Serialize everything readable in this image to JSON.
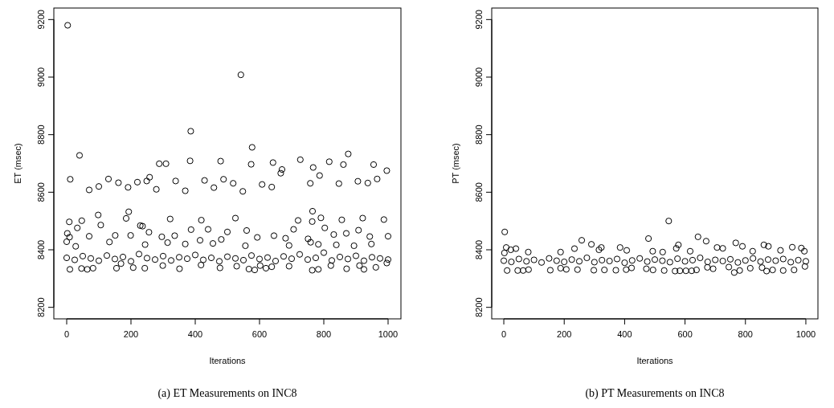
{
  "chart_data": [
    {
      "type": "scatter",
      "xlabel": "Iterations",
      "ylabel": "ET (msec)",
      "annotations": [
        "(a)  ET Measurements on INC8"
      ],
      "marker": "circle",
      "color": "#000000",
      "xlim": [
        -40,
        1040
      ],
      "ylim": [
        8160,
        9240
      ],
      "xticks": [
        0,
        200,
        400,
        600,
        800,
        1000
      ],
      "yticks": [
        8200,
        8400,
        8600,
        8800,
        9000,
        9200
      ],
      "x": [
        3,
        542,
        386,
        577,
        40,
        876,
        384,
        479,
        727,
        642,
        817,
        288,
        309,
        574,
        861,
        955,
        767,
        670,
        666,
        787,
        996,
        11,
        130,
        258,
        488,
        966,
        249,
        339,
        429,
        220,
        161,
        518,
        758,
        847,
        906,
        937,
        608,
        100,
        191,
        458,
        638,
        70,
        279,
        369,
        548,
        765,
        193,
        98,
        185,
        791,
        921,
        525,
        322,
        987,
        47,
        419,
        720,
        856,
        8,
        764,
        106,
        229,
        236,
        803,
        706,
        33,
        387,
        440,
        908,
        2,
        256,
        500,
        560,
        870,
        151,
        199,
        336,
        645,
        831,
        1000,
        70,
        943,
        751,
        681,
        415,
        9,
        296,
        481,
        593,
        0,
        133,
        314,
        783,
        894,
        692,
        556,
        28,
        244,
        455,
        839,
        948,
        759,
        369,
        10,
        46,
        64,
        82,
        155,
        207,
        243,
        351,
        477,
        567,
        585,
        620,
        638,
        692,
        764,
        783,
        871,
        925,
        962,
        169,
        299,
        418,
        529,
        602,
        822,
        911,
        996,
        0,
        25,
        50,
        75,
        100,
        125,
        150,
        175,
        200,
        225,
        250,
        275,
        300,
        325,
        350,
        375,
        400,
        425,
        450,
        475,
        500,
        525,
        550,
        575,
        600,
        625,
        650,
        675,
        700,
        725,
        750,
        775,
        800,
        825,
        850,
        875,
        900,
        925,
        950,
        975,
        1000
      ],
      "values": [
        9180,
        9008,
        8812,
        8756,
        8728,
        8733,
        8709,
        8708,
        8713,
        8703,
        8706,
        8699,
        8699,
        8697,
        8696,
        8696,
        8686,
        8679,
        8666,
        8658,
        8675,
        8645,
        8646,
        8652,
        8645,
        8646,
        8639,
        8639,
        8641,
        8635,
        8633,
        8631,
        8631,
        8630,
        8638,
        8632,
        8627,
        8620,
        8617,
        8616,
        8618,
        8608,
        8610,
        8605,
        8603,
        8534,
        8532,
        8521,
        8509,
        8511,
        8510,
        8510,
        8507,
        8505,
        8501,
        8503,
        8502,
        8504,
        8497,
        8498,
        8486,
        8484,
        8482,
        8476,
        8471,
        8476,
        8470,
        8471,
        8468,
        8457,
        8461,
        8462,
        8467,
        8457,
        8450,
        8450,
        8449,
        8449,
        8453,
        8447,
        8447,
        8446,
        8438,
        8440,
        8433,
        8444,
        8445,
        8436,
        8443,
        8428,
        8427,
        8425,
        8419,
        8414,
        8415,
        8414,
        8412,
        8418,
        8422,
        8417,
        8420,
        8426,
        8420,
        8332,
        8335,
        8332,
        8336,
        8336,
        8338,
        8336,
        8334,
        8337,
        8333,
        8330,
        8336,
        8341,
        8343,
        8329,
        8332,
        8334,
        8332,
        8339,
        8352,
        8345,
        8347,
        8343,
        8345,
        8345,
        8345,
        8354,
        8372,
        8365,
        8378,
        8370,
        8362,
        8380,
        8368,
        8375,
        8360,
        8385,
        8371,
        8366,
        8378,
        8363,
        8374,
        8369,
        8382,
        8365,
        8372,
        8360,
        8376,
        8370,
        8364,
        8380,
        8368,
        8373,
        8361,
        8377,
        8369,
        8384,
        8366,
        8372,
        8390,
        8363,
        8375,
        8368,
        8379,
        8362,
        8374,
        8370,
        8366
      ]
    },
    {
      "type": "scatter",
      "xlabel": "Iterations",
      "ylabel": "PT (msec)",
      "annotations": [
        "(b)  PT Measurements on INC8"
      ],
      "marker": "circle",
      "color": "#000000",
      "xlim": [
        -40,
        1040
      ],
      "ylim": [
        8160,
        9240
      ],
      "xticks": [
        0,
        200,
        400,
        600,
        800,
        1000
      ],
      "yticks": [
        8200,
        8400,
        8600,
        8800,
        9000,
        9200
      ],
      "x": [
        3,
        546,
        479,
        643,
        670,
        258,
        290,
        768,
        578,
        861,
        876,
        955,
        985,
        8,
        323,
        385,
        706,
        725,
        790,
        234,
        571,
        40,
        23,
        2,
        81,
        188,
        315,
        407,
        493,
        526,
        617,
        824,
        916,
        995,
        11,
        46,
        64,
        82,
        154,
        188,
        207,
        244,
        298,
        333,
        371,
        405,
        423,
        472,
        494,
        531,
        567,
        583,
        603,
        622,
        638,
        674,
        693,
        745,
        763,
        781,
        816,
        855,
        870,
        890,
        925,
        961,
        997,
        0,
        25,
        50,
        75,
        100,
        125,
        150,
        175,
        200,
        225,
        250,
        275,
        300,
        325,
        350,
        375,
        400,
        425,
        450,
        475,
        500,
        525,
        550,
        575,
        600,
        625,
        650,
        675,
        700,
        725,
        750,
        775,
        800,
        825,
        850,
        875,
        900,
        925,
        950,
        975,
        1000
      ],
      "values": [
        8462,
        8500,
        8439,
        8445,
        8430,
        8433,
        8419,
        8424,
        8417,
        8417,
        8412,
        8409,
        8406,
        8408,
        8408,
        8408,
        8408,
        8405,
        8412,
        8404,
        8405,
        8404,
        8400,
        8389,
        8392,
        8392,
        8400,
        8398,
        8395,
        8392,
        8395,
        8395,
        8398,
        8395,
        8328,
        8328,
        8328,
        8331,
        8329,
        8336,
        8332,
        8331,
        8329,
        8330,
        8329,
        8331,
        8337,
        8334,
        8330,
        8328,
        8326,
        8327,
        8327,
        8327,
        8330,
        8339,
        8334,
        8340,
        8321,
        8328,
        8336,
        8338,
        8326,
        8330,
        8328,
        8330,
        8342,
        8362,
        8358,
        8368,
        8360,
        8365,
        8356,
        8370,
        8362,
        8358,
        8366,
        8360,
        8372,
        8357,
        8364,
        8361,
        8368,
        8355,
        8363,
        8370,
        8359,
        8366,
        8362,
        8357,
        8369,
        8360,
        8364,
        8372,
        8358,
        8365,
        8361,
        8367,
        8356,
        8363,
        8370,
        8359,
        8366,
        8362,
        8368,
        8357,
        8364,
        8360
      ]
    }
  ]
}
